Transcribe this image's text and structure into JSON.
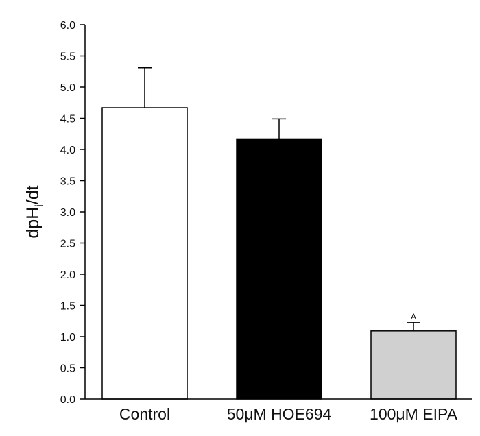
{
  "chart_data": {
    "type": "bar",
    "ylabel": "dpH",
    "ylabel_subscript": "i",
    "ylabel_suffix": "/dt",
    "ylim": [
      0,
      6.0
    ],
    "yticks": [
      "0.0",
      "0.5",
      "1.0",
      "1.5",
      "2.0",
      "2.5",
      "3.0",
      "3.5",
      "4.0",
      "4.5",
      "5.0",
      "5.5",
      "6.0"
    ],
    "categories": [
      "Control",
      "50μM HOE694",
      "100μM EIPA"
    ],
    "values": [
      4.67,
      4.16,
      1.09
    ],
    "errors": [
      0.64,
      0.33,
      0.14
    ],
    "bar_colors": [
      "#ffffff",
      "#000000",
      "#d0d0d0"
    ],
    "annotations": [
      "",
      "",
      "A"
    ],
    "grid": false,
    "legend": "none"
  }
}
